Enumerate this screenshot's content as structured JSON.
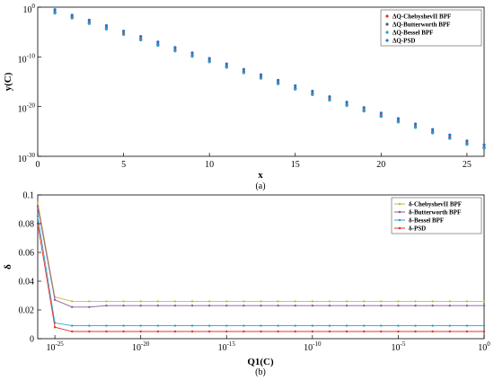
{
  "chart_data": [
    {
      "panel_label": "(a)",
      "type": "scatter",
      "xlabel": "x",
      "ylabel": "y(C)",
      "xlim": [
        0,
        26
      ],
      "ylim_log10": [
        -30,
        0
      ],
      "y_scale": "log",
      "grid": false,
      "legend_position": "top-right",
      "x_ticks": [
        "0",
        "5",
        "10",
        "15",
        "20",
        "25"
      ],
      "y_ticks": [
        {
          "base": "10",
          "exp": "0",
          "log10": 0
        },
        {
          "base": "10",
          "exp": "-10",
          "log10": -10
        },
        {
          "base": "10",
          "exp": "-20",
          "log10": -20
        },
        {
          "base": "10",
          "exp": "-30",
          "log10": -30
        }
      ],
      "x": [
        1,
        2,
        3,
        4,
        5,
        6,
        7,
        8,
        9,
        10,
        11,
        12,
        13,
        14,
        15,
        16,
        17,
        18,
        19,
        20,
        21,
        22,
        23,
        24,
        25,
        26
      ],
      "series": [
        {
          "name": "ΔQ-ChebyshevII BPF",
          "color": "#e8312a",
          "marker": "dot",
          "y_log10": [
            -1,
            -2,
            -3.1,
            -4.2,
            -5.3,
            -6.4,
            -7.5,
            -8.6,
            -9.7,
            -10.8,
            -11.9,
            -13.0,
            -14.1,
            -15.2,
            -16.3,
            -17.4,
            -18.5,
            -19.6,
            -20.7,
            -21.8,
            -22.9,
            -24.0,
            -25.1,
            -26.2,
            -27.4,
            -28.2
          ]
        },
        {
          "name": "ΔQ-Butterworth BPF",
          "color": "#5a5a5a",
          "marker": "dot",
          "y_log10": [
            -1.1,
            -2.1,
            -3.2,
            -4.3,
            -5.4,
            -6.5,
            -7.6,
            -8.7,
            -9.8,
            -10.9,
            -12.0,
            -13.1,
            -14.2,
            -15.3,
            -16.4,
            -17.5,
            -18.6,
            -19.7,
            -20.8,
            -21.9,
            -23.0,
            -24.1,
            -25.2,
            -26.3,
            -27.5,
            -28.3
          ]
        },
        {
          "name": "ΔQ-Bessel BPF",
          "color": "#2aa3c9",
          "marker": "dot",
          "y_log10": [
            -1.2,
            -2.2,
            -3.3,
            -4.4,
            -5.5,
            -6.6,
            -7.7,
            -8.8,
            -9.9,
            -11.0,
            -12.1,
            -13.2,
            -14.3,
            -15.4,
            -16.5,
            -17.6,
            -18.7,
            -19.8,
            -20.9,
            -22.0,
            -23.1,
            -24.2,
            -25.3,
            -26.4,
            -27.6,
            -28.4
          ]
        },
        {
          "name": "ΔQ-PSD",
          "color": "#2a6fd6",
          "marker": "dot",
          "y_log10": [
            -0.5,
            -1.6,
            -2.6,
            -3.7,
            -4.8,
            -5.9,
            -7.0,
            -8.1,
            -9.2,
            -10.3,
            -11.4,
            -12.5,
            -13.6,
            -14.7,
            -15.8,
            -16.9,
            -18.0,
            -19.1,
            -20.2,
            -21.3,
            -22.4,
            -23.5,
            -24.6,
            -25.7,
            -26.9,
            -27.7
          ]
        }
      ]
    },
    {
      "panel_label": "(b)",
      "type": "line",
      "xlabel": "Q1(C)",
      "ylabel": "δ",
      "x_scale": "log",
      "xlim_log10": [
        -26,
        0
      ],
      "ylim": [
        0,
        0.1
      ],
      "grid": false,
      "legend_position": "top-right",
      "x_ticks": [
        {
          "base": "10",
          "exp": "-25",
          "log10": -25
        },
        {
          "base": "10",
          "exp": "-20",
          "log10": -20
        },
        {
          "base": "10",
          "exp": "-15",
          "log10": -15
        },
        {
          "base": "10",
          "exp": "-10",
          "log10": -10
        },
        {
          "base": "10",
          "exp": "-5",
          "log10": -5
        },
        {
          "base": "10",
          "exp": "0",
          "log10": 0
        }
      ],
      "y_ticks": [
        "0",
        "0.02",
        "0.04",
        "0.06",
        "0.08",
        "0.1"
      ],
      "x_log10": [
        -26,
        -25,
        -24,
        -23,
        -22,
        -21,
        -20,
        -19,
        -18,
        -17,
        -16,
        -15,
        -14,
        -13,
        -12,
        -11,
        -10,
        -9,
        -8,
        -7,
        -6,
        -5,
        -4,
        -3,
        -2,
        -1,
        0
      ],
      "series": [
        {
          "name": "δ-ChebyshevII BPF",
          "color": "#c9b84a",
          "values": [
            0.095,
            0.029,
            0.026,
            0.026,
            0.026,
            0.026,
            0.026,
            0.026,
            0.026,
            0.026,
            0.026,
            0.026,
            0.026,
            0.026,
            0.026,
            0.026,
            0.026,
            0.026,
            0.026,
            0.026,
            0.026,
            0.026,
            0.026,
            0.026,
            0.026,
            0.026,
            0.026
          ]
        },
        {
          "name": "δ-Butterworth BPF",
          "color": "#8a5a9a",
          "values": [
            0.092,
            0.027,
            0.022,
            0.022,
            0.023,
            0.023,
            0.023,
            0.023,
            0.023,
            0.023,
            0.023,
            0.023,
            0.023,
            0.023,
            0.023,
            0.023,
            0.023,
            0.023,
            0.023,
            0.023,
            0.023,
            0.023,
            0.023,
            0.023,
            0.023,
            0.023,
            0.023
          ]
        },
        {
          "name": "δ-Bessel BPF",
          "color": "#2aa3c9",
          "values": [
            0.085,
            0.011,
            0.009,
            0.009,
            0.009,
            0.009,
            0.009,
            0.009,
            0.009,
            0.009,
            0.009,
            0.009,
            0.009,
            0.009,
            0.009,
            0.009,
            0.009,
            0.009,
            0.009,
            0.009,
            0.009,
            0.009,
            0.009,
            0.009,
            0.009,
            0.009,
            0.009
          ]
        },
        {
          "name": "δ-PSD",
          "color": "#e8312a",
          "values": [
            0.08,
            0.008,
            0.005,
            0.005,
            0.005,
            0.005,
            0.005,
            0.005,
            0.005,
            0.005,
            0.005,
            0.005,
            0.005,
            0.005,
            0.005,
            0.005,
            0.005,
            0.005,
            0.005,
            0.005,
            0.005,
            0.005,
            0.005,
            0.005,
            0.005,
            0.005,
            0.005
          ]
        }
      ]
    }
  ]
}
